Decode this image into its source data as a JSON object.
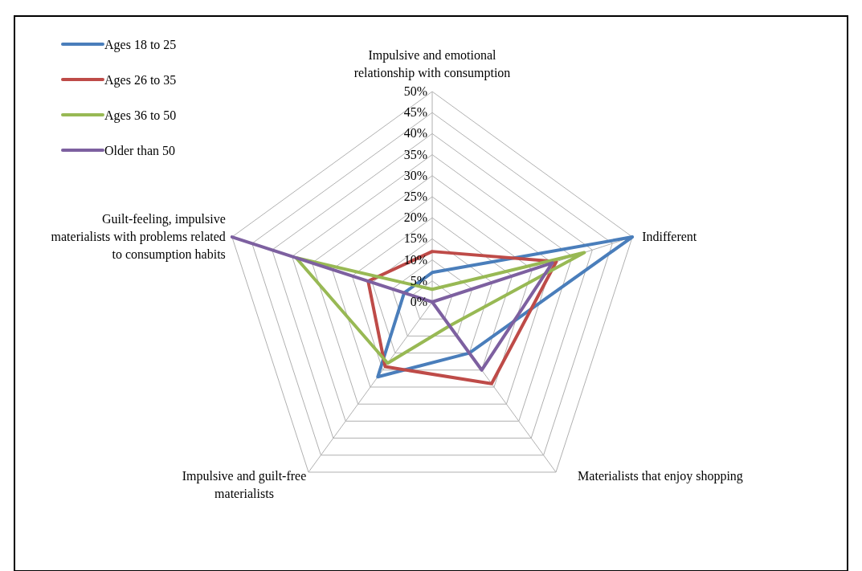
{
  "chart_data": {
    "type": "radar",
    "categories": [
      "Impulsive and emotional relationship with consumption",
      "Indifferent",
      "Materialists that enjoy shopping",
      "Impulsive and guilt-free materialists",
      "Guilt-feeling, impulsive materialists with problems related to consumption habits"
    ],
    "series": [
      {
        "name": "Ages 18 to 25",
        "color": "#4a7ebb",
        "values": [
          7,
          50,
          15,
          22,
          7
        ]
      },
      {
        "name": "Ages 26 to 35",
        "color": "#be4b48",
        "values": [
          12,
          31,
          24,
          19,
          16
        ]
      },
      {
        "name": "Ages 36 to 50",
        "color": "#98b954",
        "values": [
          3,
          38,
          7,
          18,
          34
        ]
      },
      {
        "name": "Older than 50",
        "color": "#7d60a0",
        "values": [
          0,
          30,
          20,
          0,
          50
        ]
      }
    ],
    "ylim": [
      0,
      50
    ],
    "yticks": [
      {
        "value": 0,
        "label": "0%"
      },
      {
        "value": 5,
        "label": "5%"
      },
      {
        "value": 10,
        "label": "10%"
      },
      {
        "value": 15,
        "label": "15%"
      },
      {
        "value": 20,
        "label": "20%"
      },
      {
        "value": 25,
        "label": "25%"
      },
      {
        "value": 30,
        "label": "30%"
      },
      {
        "value": 35,
        "label": "35%"
      },
      {
        "value": 40,
        "label": "40%"
      },
      {
        "value": 45,
        "label": "45%"
      },
      {
        "value": 50,
        "label": "50%"
      }
    ],
    "grid": true,
    "legend": "top left",
    "marker": "none",
    "line_style": "solid"
  }
}
